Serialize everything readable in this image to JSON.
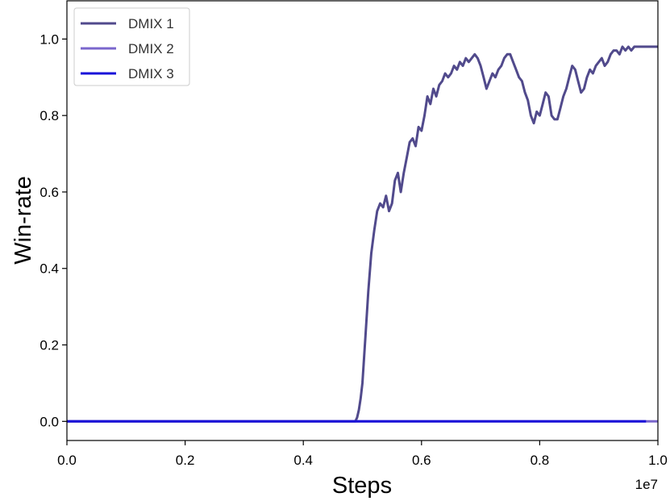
{
  "chart_data": {
    "type": "line",
    "xlabel": "Steps",
    "ylabel": "Win-rate",
    "x_offset_text": "1e7",
    "xlim": [
      0.0,
      1.0
    ],
    "ylim": [
      -0.05,
      1.1
    ],
    "xticks": [
      0.0,
      0.2,
      0.4,
      0.6,
      0.8,
      1.0
    ],
    "xtick_labels": [
      "0.0",
      "0.2",
      "0.4",
      "0.6",
      "0.8",
      "1.0"
    ],
    "yticks": [
      0.0,
      0.2,
      0.4,
      0.6,
      0.8,
      1.0
    ],
    "ytick_labels": [
      "0.0",
      "0.2",
      "0.4",
      "0.6",
      "0.8",
      "1.0"
    ],
    "grid": false,
    "legend_position": "top-left",
    "series": [
      {
        "name": "DMIX 1",
        "color": "#514a8c",
        "x": [
          0.0,
          0.2,
          0.4,
          0.488,
          0.491,
          0.494,
          0.497,
          0.5,
          0.505,
          0.51,
          0.515,
          0.52,
          0.525,
          0.53,
          0.535,
          0.54,
          0.545,
          0.55,
          0.555,
          0.56,
          0.565,
          0.57,
          0.575,
          0.58,
          0.585,
          0.59,
          0.595,
          0.6,
          0.605,
          0.61,
          0.615,
          0.62,
          0.625,
          0.63,
          0.635,
          0.64,
          0.645,
          0.65,
          0.655,
          0.66,
          0.665,
          0.67,
          0.675,
          0.68,
          0.685,
          0.69,
          0.695,
          0.7,
          0.705,
          0.71,
          0.715,
          0.72,
          0.725,
          0.73,
          0.735,
          0.74,
          0.745,
          0.75,
          0.755,
          0.76,
          0.765,
          0.77,
          0.775,
          0.78,
          0.785,
          0.79,
          0.795,
          0.8,
          0.805,
          0.81,
          0.815,
          0.82,
          0.825,
          0.83,
          0.835,
          0.84,
          0.845,
          0.85,
          0.855,
          0.86,
          0.865,
          0.87,
          0.875,
          0.88,
          0.885,
          0.89,
          0.895,
          0.9,
          0.905,
          0.91,
          0.915,
          0.92,
          0.925,
          0.93,
          0.935,
          0.94,
          0.945,
          0.95,
          0.955,
          0.96,
          0.965,
          0.97,
          0.975,
          0.98,
          0.985,
          0.99,
          0.995,
          1.0
        ],
        "y": [
          0.0,
          0.0,
          0.0,
          0.0,
          0.01,
          0.03,
          0.06,
          0.1,
          0.22,
          0.34,
          0.44,
          0.5,
          0.55,
          0.57,
          0.56,
          0.59,
          0.55,
          0.57,
          0.63,
          0.65,
          0.6,
          0.65,
          0.69,
          0.73,
          0.74,
          0.72,
          0.77,
          0.76,
          0.8,
          0.85,
          0.83,
          0.87,
          0.85,
          0.88,
          0.89,
          0.91,
          0.9,
          0.91,
          0.93,
          0.92,
          0.94,
          0.93,
          0.95,
          0.94,
          0.95,
          0.96,
          0.95,
          0.93,
          0.9,
          0.87,
          0.89,
          0.91,
          0.9,
          0.92,
          0.93,
          0.95,
          0.96,
          0.96,
          0.94,
          0.92,
          0.9,
          0.89,
          0.86,
          0.84,
          0.8,
          0.78,
          0.81,
          0.8,
          0.83,
          0.86,
          0.85,
          0.8,
          0.79,
          0.79,
          0.82,
          0.85,
          0.87,
          0.9,
          0.93,
          0.92,
          0.89,
          0.86,
          0.87,
          0.9,
          0.92,
          0.91,
          0.93,
          0.94,
          0.95,
          0.93,
          0.94,
          0.96,
          0.97,
          0.97,
          0.96,
          0.98,
          0.97,
          0.98,
          0.97,
          0.98,
          0.98,
          0.98,
          0.98,
          0.98,
          0.98,
          0.98,
          0.98,
          0.98
        ]
      },
      {
        "name": "DMIX 2",
        "color": "#7a66cc",
        "x": [
          0.0,
          1.0
        ],
        "y": [
          0.0,
          0.0
        ]
      },
      {
        "name": "DMIX 3",
        "color": "#1a13d9",
        "x": [
          0.0,
          0.98
        ],
        "y": [
          0.0,
          0.0
        ]
      }
    ]
  }
}
